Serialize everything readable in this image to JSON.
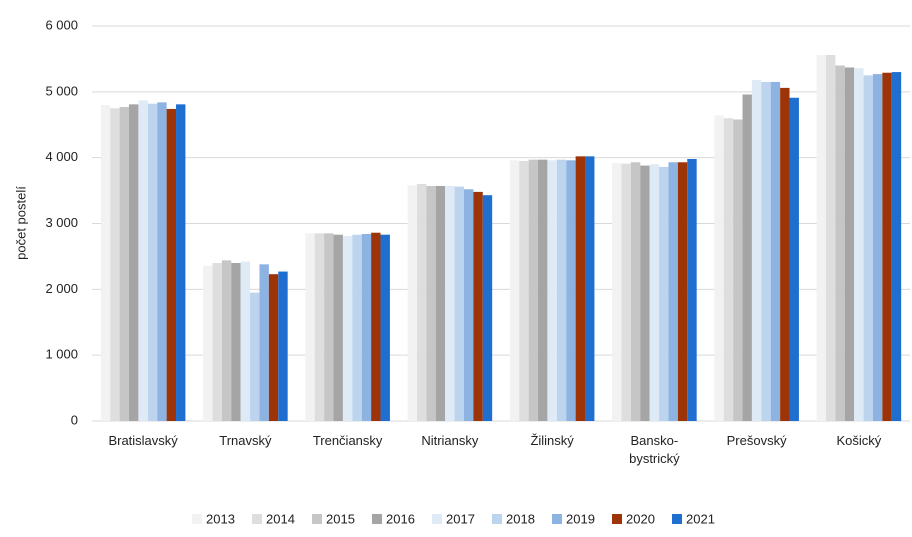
{
  "chart_data": {
    "type": "bar",
    "y_label": "počet postelí",
    "categories": [
      "Bratislavský",
      "Trnavský",
      "Trenčiansky",
      "Nitriansky",
      "Žilinský",
      "Bansko-bystrický",
      "Prešovský",
      "Košický"
    ],
    "series": [
      {
        "name": "2013",
        "color": "#f2f2f2",
        "values": [
          4800,
          2360,
          2850,
          3580,
          3960,
          3920,
          4640,
          5560
        ]
      },
      {
        "name": "2014",
        "color": "#dedede",
        "values": [
          4750,
          2400,
          2850,
          3600,
          3950,
          3910,
          4600,
          5560
        ]
      },
      {
        "name": "2015",
        "color": "#c6c6c6",
        "values": [
          4770,
          2440,
          2850,
          3570,
          3970,
          3930,
          4580,
          5400
        ]
      },
      {
        "name": "2016",
        "color": "#a5a5a5",
        "values": [
          4810,
          2400,
          2830,
          3570,
          3970,
          3880,
          4960,
          5370
        ]
      },
      {
        "name": "2017",
        "color": "#deebf7",
        "values": [
          4870,
          2420,
          2810,
          3570,
          3960,
          3900,
          5180,
          5360
        ]
      },
      {
        "name": "2018",
        "color": "#bcd4ee",
        "values": [
          4820,
          1950,
          2830,
          3560,
          3970,
          3860,
          5150,
          5250
        ]
      },
      {
        "name": "2019",
        "color": "#8db3e2",
        "values": [
          4840,
          2380,
          2840,
          3520,
          3960,
          3930,
          5150,
          5270
        ]
      },
      {
        "name": "2020",
        "color": "#9c3408",
        "values": [
          4740,
          2230,
          2860,
          3480,
          4020,
          3930,
          5060,
          5290
        ]
      },
      {
        "name": "2021",
        "color": "#1f6fd1",
        "values": [
          4810,
          2270,
          2830,
          3430,
          4020,
          3980,
          4910,
          5300
        ]
      }
    ],
    "ylim": [
      0,
      6000
    ],
    "yticks": [
      0,
      {
        "value": 1000,
        "label": "1 000"
      },
      {
        "value": 2000,
        "label": "2 000"
      },
      {
        "value": 3000,
        "label": "3 000"
      },
      {
        "value": 4000,
        "label": "4 000"
      },
      {
        "value": 5000,
        "label": "5 000"
      },
      {
        "value": 6000,
        "label": "6 000"
      }
    ],
    "grid": true
  }
}
